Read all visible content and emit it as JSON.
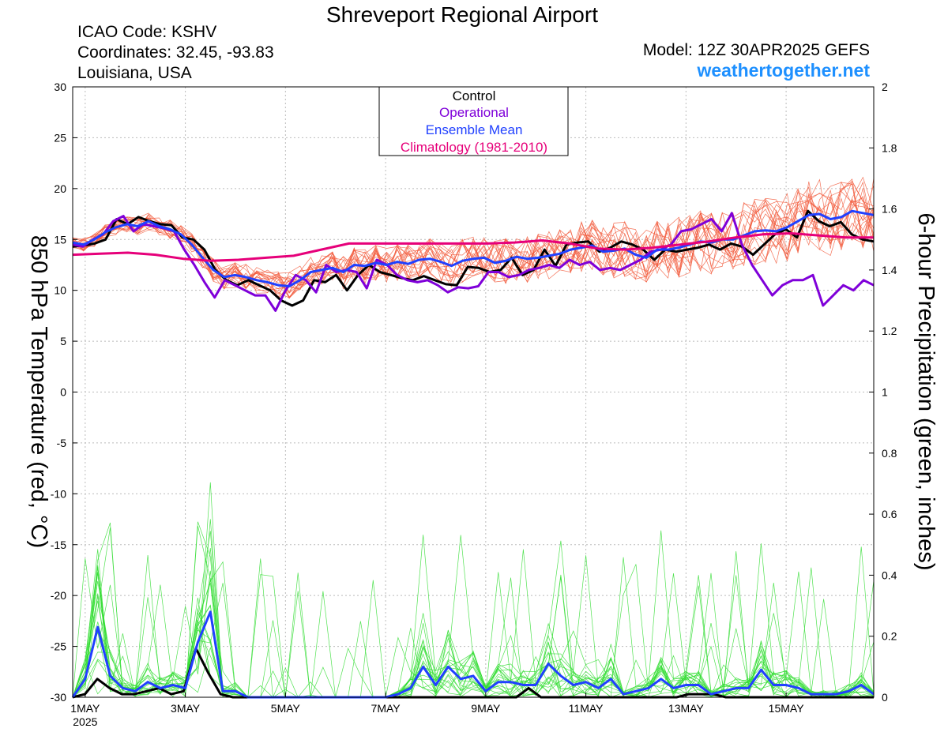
{
  "header": {
    "title": "Shreveport Regional Airport",
    "icao": "ICAO Code: KSHV",
    "coordinates": "Coordinates: 32.45, -93.83",
    "location": "Louisiana, USA",
    "model": "Model: 12Z 30APR2025 GEFS",
    "site": "weathertogether.net"
  },
  "colors": {
    "control": "#000000",
    "operational": "#7f00d9",
    "ensemble_mean": "#2040ff",
    "climatology": "#e6007a",
    "members_temp": "#f25a3c",
    "members_precip": "#33dd33",
    "site_link": "#1e90ff"
  },
  "chart_data": {
    "type": "line",
    "title": "Shreveport Regional Airport",
    "ylabel": "850 hPa Temperature (red, °C)",
    "y2label": "6-hour Precipitation (green, inches)",
    "ylim": [
      -30,
      30
    ],
    "y2lim": [
      0,
      2
    ],
    "yticks": [
      "30",
      "25",
      "20",
      "15",
      "10",
      "5",
      "0",
      "-5",
      "-10",
      "-15",
      "-20",
      "-25",
      "-30"
    ],
    "y2ticks": [
      "2",
      "1.8",
      "1.6",
      "1.4",
      "1.2",
      "1",
      "0.8",
      "0.6",
      "0.4",
      "0.2",
      "0"
    ],
    "xticks": [
      {
        "label": "1MAY",
        "sub": "2025",
        "day": 1
      },
      {
        "label": "3MAY",
        "sub": "",
        "day": 3
      },
      {
        "label": "5MAY",
        "sub": "",
        "day": 5
      },
      {
        "label": "7MAY",
        "sub": "",
        "day": 7
      },
      {
        "label": "9MAY",
        "sub": "",
        "day": 9
      },
      {
        "label": "11MAY",
        "sub": "",
        "day": 11
      },
      {
        "label": "13MAY",
        "sub": "",
        "day": 13
      },
      {
        "label": "15MAY",
        "sub": "",
        "day": 15
      }
    ],
    "x_domain_days": [
      0.75,
      16.75
    ],
    "grid": true,
    "legend": {
      "position": "top-center",
      "entries": [
        {
          "name": "Control",
          "color": "#000000"
        },
        {
          "name": "Operational",
          "color": "#7f00d9"
        },
        {
          "name": "Ensemble Mean",
          "color": "#2040ff"
        },
        {
          "name": "Climatology (1981-2010)",
          "color": "#e6007a"
        }
      ]
    },
    "temperature_series": [
      {
        "name": "Control",
        "color": "#000000",
        "end_day": 16.75,
        "values": [
          14.3,
          14.4,
          14.6,
          15,
          17,
          16.5,
          17.2,
          16.8,
          16.5,
          16.4,
          15.2,
          15,
          14,
          12,
          11,
          10.5,
          11,
          10.5,
          10,
          9,
          8.5,
          9,
          11,
          10.8,
          11.5,
          10,
          11.5,
          12.5,
          11.8,
          11.5,
          11.2,
          11,
          11.4,
          11,
          10.6,
          10.5,
          12.3,
          12.2,
          11.8,
          12,
          13.2,
          11.5,
          12,
          14,
          12.4,
          14.5,
          14.7,
          14.8,
          13.8,
          14.2,
          14.8,
          14.5,
          14,
          13,
          14,
          13.8,
          14,
          14.2,
          14.5,
          14,
          14.6,
          14.3,
          13.5,
          14.5,
          15.5,
          16,
          15.2,
          17.8,
          16.8,
          16.3,
          16.7,
          15.5,
          15,
          14.8
        ]
      },
      {
        "name": "Operational",
        "color": "#7f00d9",
        "end_day": 16.75,
        "values": [
          14.5,
          14.3,
          15,
          15.5,
          16.8,
          17.3,
          15.8,
          16.5,
          16.3,
          16.1,
          15.8,
          14,
          12.5,
          10.8,
          9.3,
          11,
          10.5,
          10,
          9.5,
          9.5,
          8,
          10,
          11.5,
          11,
          9.8,
          12.5,
          11.8,
          12,
          11.8,
          10.2,
          13,
          12.5,
          11.5,
          11,
          10.8,
          11,
          10.5,
          9.8,
          10.3,
          10.2,
          10.4,
          11.8,
          11.8,
          11.3,
          11.5,
          12,
          12.2,
          12.5,
          12.2,
          13,
          12.5,
          12.8,
          12,
          12.2,
          12,
          12.5,
          13,
          13.8,
          14,
          14.5,
          15.8,
          16,
          16.5,
          17,
          15.8,
          17.6,
          14.5,
          12.5,
          11,
          9.5,
          10.5,
          11,
          11,
          11.5,
          8.5,
          9.5,
          10.5,
          10,
          11,
          10.5
        ]
      },
      {
        "name": "Ensemble Mean",
        "color": "#2040ff",
        "end_day": 16.75,
        "values": [
          14.7,
          14.5,
          15,
          15.7,
          16.2,
          16.5,
          16.3,
          16.8,
          16.3,
          16,
          15.5,
          14.5,
          13.2,
          12,
          11.3,
          11.5,
          11.3,
          11,
          10.8,
          10.5,
          10.4,
          11,
          11.8,
          12,
          12.2,
          11.8,
          12.5,
          12.4,
          12.7,
          12.5,
          12.8,
          12.6,
          13,
          13.1,
          12.8,
          12.4,
          12.9,
          13.1,
          13.2,
          12.7,
          12.9,
          13.3,
          13.1,
          13.2,
          13.4,
          13.6,
          14,
          14.2,
          14.4,
          13.8,
          13.9,
          14.1,
          13.5,
          13.2,
          14,
          14,
          14.2,
          14.5,
          14.8,
          14.7,
          15,
          15,
          15.4,
          15.8,
          15.9,
          15.8,
          16.2,
          16.8,
          17.4,
          17.5,
          17,
          17.2,
          17.8,
          17.6,
          17.4
        ]
      },
      {
        "name": "Climatology (1981-2010)",
        "color": "#e6007a",
        "end_day": 16.75,
        "values": [
          13.5,
          13.6,
          13.7,
          13.5,
          13.1,
          12.9,
          13,
          13.2,
          13.4,
          14,
          14.6,
          14.6,
          14.6,
          14.6,
          14.6,
          14.6,
          14.7,
          14.9,
          14.6,
          14.1,
          14,
          14.2,
          14.5,
          14.8,
          15.2,
          15.5,
          15.6,
          15.4,
          15.2,
          15.2
        ]
      }
    ],
    "precipitation_series": [
      {
        "name": "Control",
        "color": "#000000",
        "end_day": 16.75,
        "values": [
          0,
          0.01,
          0.06,
          0.03,
          0.01,
          0.01,
          0.02,
          0.03,
          0.01,
          0.02,
          0.16,
          0.08,
          0.01,
          0,
          0,
          0,
          0,
          0,
          0,
          0,
          0,
          0,
          0,
          0,
          0,
          0,
          0,
          0,
          0,
          0,
          0,
          0,
          0,
          0,
          0,
          0,
          0,
          0.03,
          0,
          0,
          0,
          0,
          0,
          0,
          0,
          0,
          0,
          0,
          0,
          0,
          0.01,
          0.01,
          0.01,
          0,
          0,
          0,
          0,
          0,
          0,
          0,
          0,
          0,
          0,
          0,
          0,
          0
        ]
      },
      {
        "name": "Ensemble Mean",
        "color": "#2040ff",
        "end_day": 16.75,
        "values": [
          0,
          0.06,
          0.23,
          0.07,
          0.03,
          0.02,
          0.05,
          0.03,
          0.04,
          0.03,
          0.18,
          0.28,
          0.02,
          0.02,
          0,
          0,
          0,
          0,
          0,
          0,
          0,
          0,
          0,
          0,
          0,
          0,
          0.01,
          0.03,
          0.1,
          0.04,
          0.1,
          0.06,
          0.07,
          0.02,
          0.05,
          0.05,
          0.04,
          0.04,
          0.11,
          0.07,
          0.04,
          0.05,
          0.03,
          0.06,
          0.01,
          0.02,
          0.03,
          0.06,
          0.03,
          0.04,
          0.04,
          0.01,
          0.02,
          0.03,
          0.03,
          0.09,
          0.04,
          0.04,
          0.03,
          0.01,
          0.01,
          0.01,
          0.02,
          0.04,
          0.01
        ]
      }
    ]
  }
}
